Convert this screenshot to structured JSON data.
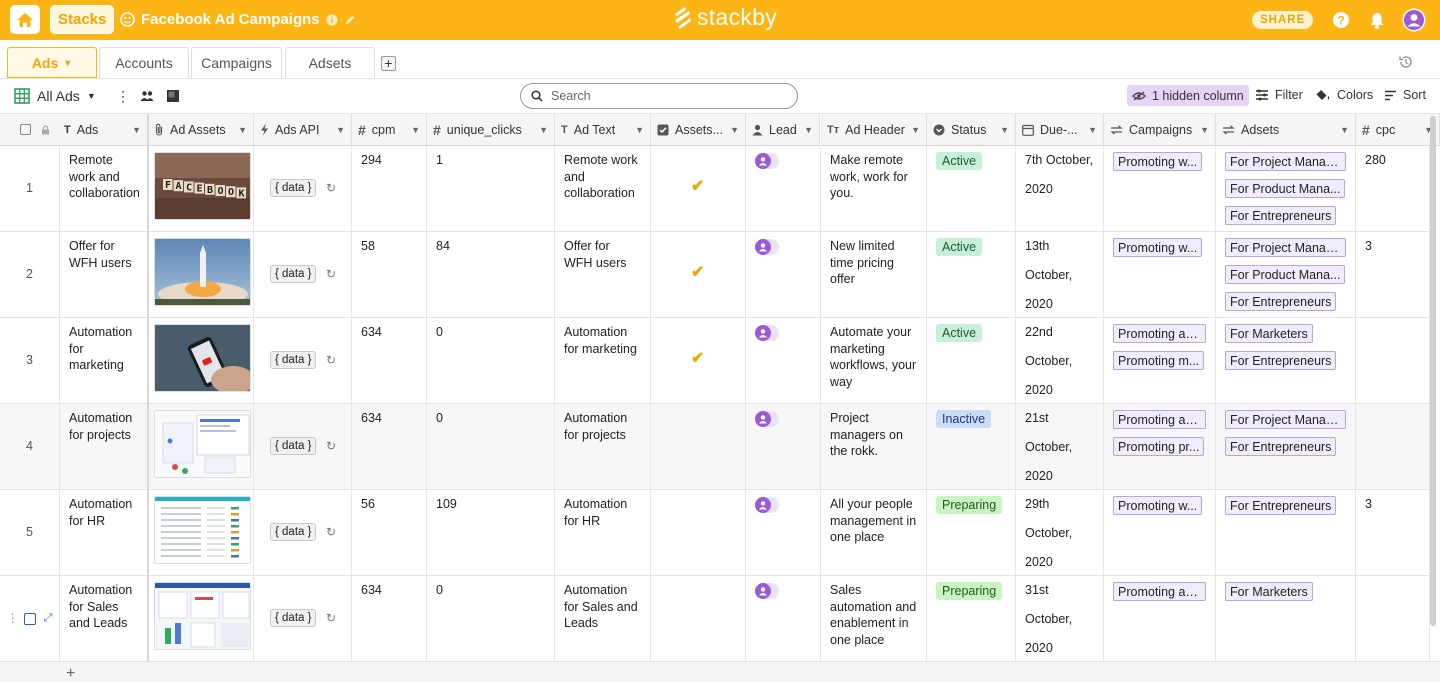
{
  "topbar": {
    "stacks_label": "Stacks",
    "stack_title": "Facebook Ad Campaigns",
    "logo_text": "stackby",
    "share_label": "SHARE",
    "accent_color": "#fdb515"
  },
  "tabs": [
    {
      "label": "Ads"
    },
    {
      "label": "Accounts"
    },
    {
      "label": "Campaigns"
    },
    {
      "label": "Adsets"
    }
  ],
  "toolbar": {
    "view_name": "All Ads",
    "search_placeholder": "Search",
    "hidden_columns": "1 hidden column",
    "filter_label": "Filter",
    "colors_label": "Colors",
    "sort_label": "Sort"
  },
  "columns": [
    {
      "label": "Ads",
      "icon": "text-icon"
    },
    {
      "label": "Ad Assets",
      "icon": "attachment-icon"
    },
    {
      "label": "Ads API",
      "icon": "bolt-icon"
    },
    {
      "label": "cpm",
      "icon": "hash-icon"
    },
    {
      "label": "unique_clicks",
      "icon": "hash-icon"
    },
    {
      "label": "Ad Text",
      "icon": "text-icon"
    },
    {
      "label": "Assets...",
      "icon": "checkbox-icon"
    },
    {
      "label": "Lead",
      "icon": "person-icon"
    },
    {
      "label": "Ad Header",
      "icon": "long-text-icon"
    },
    {
      "label": "Status",
      "icon": "single-select-icon"
    },
    {
      "label": "Due-...",
      "icon": "calendar-icon"
    },
    {
      "label": "Campaigns",
      "icon": "link-icon"
    },
    {
      "label": "Adsets",
      "icon": "link-icon"
    },
    {
      "label": "cpc",
      "icon": "hash-icon"
    }
  ],
  "rows": [
    {
      "num": "1",
      "ad": "Remote work and collaboration",
      "api": "{ data }",
      "cpm": "294",
      "clicks": "1",
      "text": "Remote work and collaboration",
      "assets_checked": true,
      "header": "Make remote work, work for you.",
      "status": "Active",
      "due": "7th October, 2020",
      "campaigns": [
        "Promoting w..."
      ],
      "adsets": [
        "For Project Manag...",
        "For Product Mana...",
        "For Entrepreneurs"
      ],
      "cpc": "280"
    },
    {
      "num": "2",
      "ad": "Offer for WFH users",
      "api": "{ data }",
      "cpm": "58",
      "clicks": "84",
      "text": "Offer for WFH users",
      "assets_checked": true,
      "header": "New limited time pricing offer",
      "status": "Active",
      "due": "13th October, 2020",
      "campaigns": [
        "Promoting w..."
      ],
      "adsets": [
        "For Project Manag...",
        "For Product Mana...",
        "For Entrepreneurs"
      ],
      "cpc": "3"
    },
    {
      "num": "3",
      "ad": "Automation for marketing",
      "api": "{ data }",
      "cpm": "634",
      "clicks": "0",
      "text": "Automation for marketing",
      "assets_checked": true,
      "header": "Automate your marketing workflows, your way",
      "status": "Active",
      "due": "22nd October, 2020",
      "campaigns": [
        "Promoting au...",
        "Promoting m..."
      ],
      "adsets": [
        "For Marketers",
        "For Entrepreneurs"
      ],
      "cpc": ""
    },
    {
      "num": "4",
      "ad": "Automation for projects",
      "api": "{ data }",
      "cpm": "634",
      "clicks": "0",
      "text": "Automation for projects",
      "assets_checked": false,
      "header": "Project managers on the rokk.",
      "status": "Inactive",
      "due": "21st October, 2020",
      "campaigns": [
        "Promoting au...",
        "Promoting pr..."
      ],
      "adsets": [
        "For Project Manag...",
        "For Entrepreneurs"
      ],
      "cpc": ""
    },
    {
      "num": "5",
      "ad": "Automation for HR",
      "api": "{ data }",
      "cpm": "56",
      "clicks": "109",
      "text": "Automation for HR",
      "assets_checked": false,
      "header": "All your people management in one place",
      "status": "Preparing",
      "due": "29th October, 2020",
      "campaigns": [
        "Promoting w..."
      ],
      "adsets": [
        "For Entrepreneurs"
      ],
      "cpc": "3"
    },
    {
      "num": "",
      "ad": "Automation for Sales and Leads",
      "api": "{ data }",
      "cpm": "634",
      "clicks": "0",
      "text": "Automation for Sales and Leads",
      "assets_checked": false,
      "header": "Sales automation and enablement in one place",
      "status": "Preparing",
      "due": "31st October, 2020",
      "campaigns": [
        "Promoting au..."
      ],
      "adsets": [
        "For Marketers"
      ],
      "cpc": ""
    }
  ],
  "footer": {
    "add_label": "+"
  }
}
